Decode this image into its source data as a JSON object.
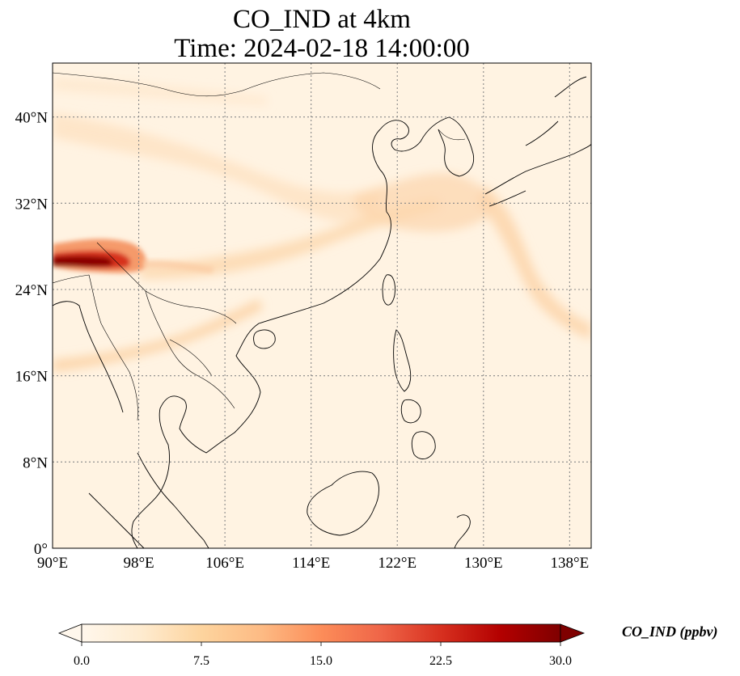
{
  "title": {
    "line1": "CO_IND at 4km",
    "line2": "Time: 2024-02-18 14:00:00"
  },
  "map": {
    "projection": "PlateCarree",
    "extent": {
      "lon_min": 90,
      "lon_max": 140,
      "lat_min": 0,
      "lat_max": 45
    },
    "gridlines": "dotted",
    "coastlines": true,
    "borders": true,
    "lon_ticks": [
      {
        "value": 90,
        "label": "90°E"
      },
      {
        "value": 98,
        "label": "98°E"
      },
      {
        "value": 106,
        "label": "106°E"
      },
      {
        "value": 114,
        "label": "114°E"
      },
      {
        "value": 122,
        "label": "122°E"
      },
      {
        "value": 130,
        "label": "130°E"
      },
      {
        "value": 138,
        "label": "138°E"
      }
    ],
    "lat_ticks": [
      {
        "value": 0,
        "label": "0°"
      },
      {
        "value": 8,
        "label": "8°N"
      },
      {
        "value": 16,
        "label": "16°N"
      },
      {
        "value": 24,
        "label": "24°N"
      },
      {
        "value": 32,
        "label": "32°N"
      },
      {
        "value": 40,
        "label": "40°N"
      }
    ]
  },
  "colorbar": {
    "colormap": "OrRd",
    "range": [
      0,
      30
    ],
    "extend": "both",
    "label": "CO_IND (ppbv)",
    "ticks": [
      {
        "value": 0,
        "label": "0.0"
      },
      {
        "value": 7.5,
        "label": "7.5"
      },
      {
        "value": 15,
        "label": "15.0"
      },
      {
        "value": 22.5,
        "label": "22.5"
      },
      {
        "value": 30,
        "label": "30.0"
      }
    ]
  },
  "colors": {
    "background_field": "#fff3e2",
    "low": "#fff7ec",
    "mid": "#fdbb84",
    "high": "#7f0000"
  }
}
